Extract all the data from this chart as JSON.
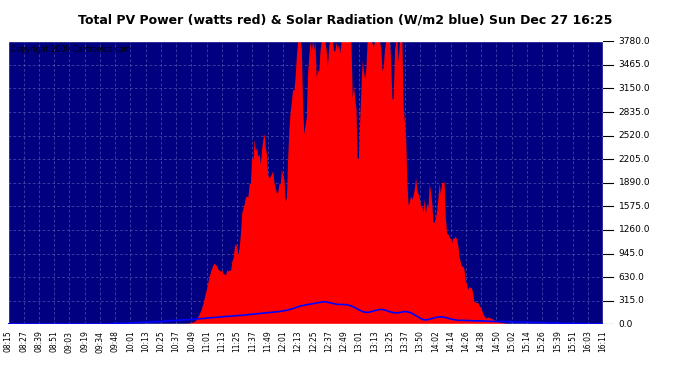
{
  "title": "Total PV Power (watts red) & Solar Radiation (W/m2 blue) Sun Dec 27 16:25",
  "copyright": "Copyright 2009 Cartronics.com",
  "y_min": 0.0,
  "y_max": 3780.0,
  "y_ticks": [
    0.0,
    315.0,
    630.0,
    945.0,
    1260.0,
    1575.0,
    1890.0,
    2205.0,
    2520.0,
    2835.0,
    3150.0,
    3465.0,
    3780.0
  ],
  "x_labels": [
    "08:15",
    "08:27",
    "08:39",
    "08:51",
    "09:03",
    "09:19",
    "09:34",
    "09:48",
    "10:01",
    "10:13",
    "10:25",
    "10:37",
    "10:49",
    "11:01",
    "11:13",
    "11:25",
    "11:37",
    "11:49",
    "12:01",
    "12:13",
    "12:25",
    "12:37",
    "12:49",
    "13:01",
    "13:13",
    "13:25",
    "13:37",
    "13:50",
    "14:02",
    "14:14",
    "14:26",
    "14:38",
    "14:50",
    "15:02",
    "15:14",
    "15:26",
    "15:39",
    "15:51",
    "16:03",
    "16:11"
  ],
  "plot_bg_color": "#000080",
  "grid_color": "#6666bb",
  "red_color": "#ff0000",
  "blue_color": "#0000ff",
  "solar_max_scaled": 315.0,
  "figsize": [
    6.9,
    3.75
  ],
  "dpi": 100
}
